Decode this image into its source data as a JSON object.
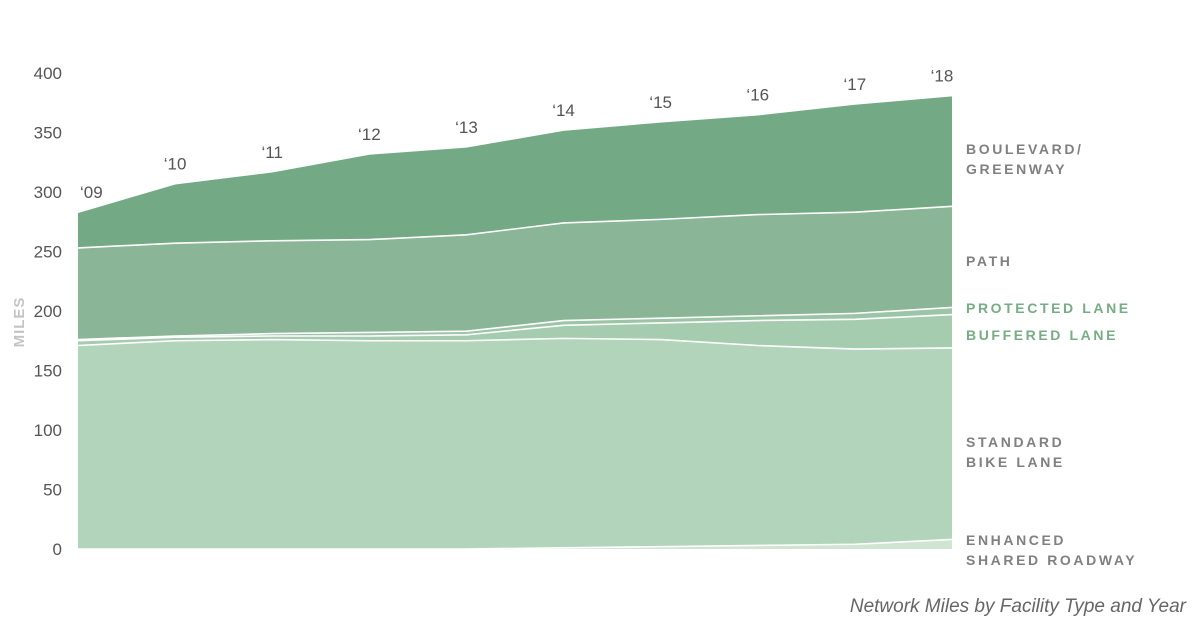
{
  "chart_data": {
    "type": "area",
    "stacked": true,
    "title": "",
    "caption": "Network Miles by Facility Type and Year",
    "ylabel": "MILES",
    "ylim": [
      0,
      400
    ],
    "yticks": [
      "0",
      "50",
      "100",
      "150",
      "200",
      "250",
      "300",
      "350",
      "400"
    ],
    "ytick_values": [
      0,
      50,
      100,
      150,
      200,
      250,
      300,
      350,
      400
    ],
    "x_labels": [
      "‘09",
      "‘10",
      "‘11",
      "‘12",
      "‘13",
      "‘14",
      "‘15",
      "‘16",
      "‘17",
      "‘18"
    ],
    "grid": false,
    "legend_position": "right",
    "series": [
      {
        "name": "ENHANCED SHARED ROADWAY",
        "label_lines": [
          "ENHANCED",
          "SHARED ROADWAY"
        ],
        "label_color": "#808080",
        "color": "#cfe5d1",
        "values": [
          0,
          0,
          0,
          0,
          0,
          1,
          2,
          3,
          4,
          8
        ]
      },
      {
        "name": "STANDARD BIKE LANE",
        "label_lines": [
          "STANDARD",
          "BIKE LANE"
        ],
        "label_color": "#808080",
        "color": "#b2d4bb",
        "values": [
          171,
          175,
          176,
          175,
          175,
          176,
          174,
          168,
          164,
          161
        ]
      },
      {
        "name": "BUFFERED LANE",
        "label_lines": [
          "BUFFERED LANE"
        ],
        "label_color": "#76ad85",
        "color": "#a6ccb0",
        "values": [
          4,
          3,
          3,
          4,
          5,
          11,
          14,
          21,
          25,
          28
        ]
      },
      {
        "name": "PROTECTED LANE",
        "label_lines": [
          "PROTECTED LANE"
        ],
        "label_color": "#76ad85",
        "color": "#9cc4a7",
        "values": [
          1,
          1,
          2,
          3,
          3,
          4,
          4,
          4,
          5,
          6
        ]
      },
      {
        "name": "PATH",
        "label_lines": [
          "PATH"
        ],
        "label_color": "#808080",
        "color": "#8ab596",
        "values": [
          77,
          78,
          78,
          78,
          81,
          82,
          83,
          85,
          85,
          85
        ]
      },
      {
        "name": "BOULEVARD/ GREENWAY",
        "label_lines": [
          "BOULEVARD/",
          "GREENWAY"
        ],
        "label_color": "#808080",
        "color": "#74a985",
        "values": [
          30,
          50,
          58,
          72,
          74,
          78,
          82,
          84,
          91,
          93
        ]
      }
    ]
  }
}
